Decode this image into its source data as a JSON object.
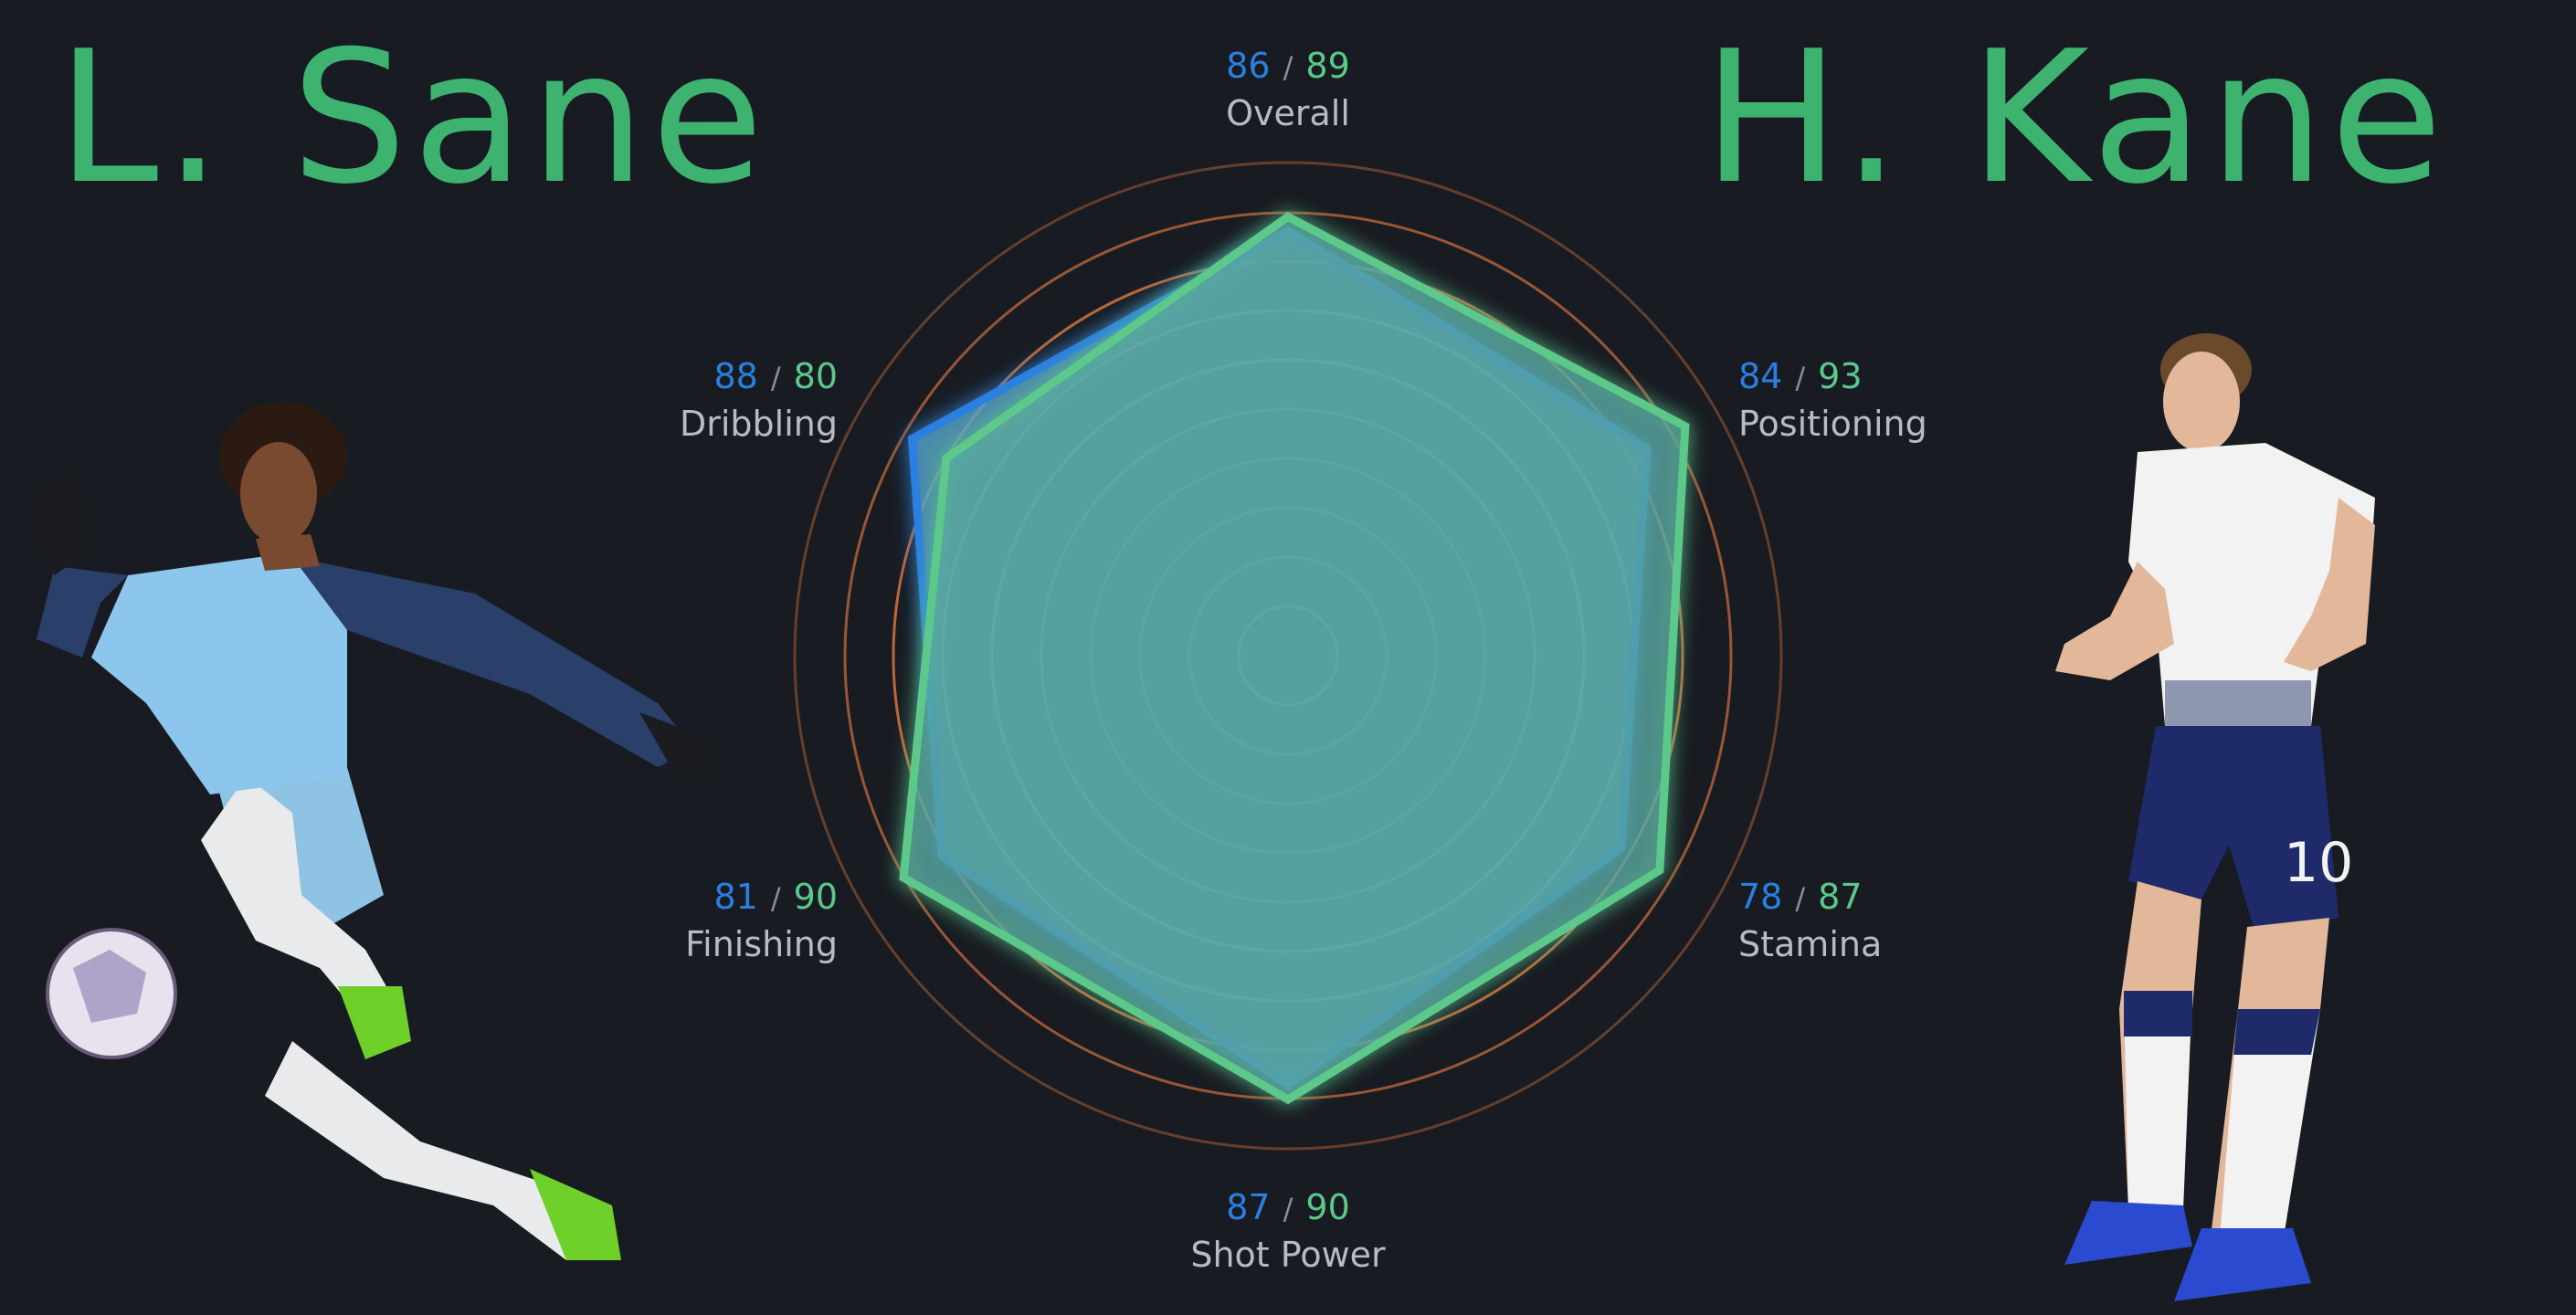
{
  "colors": {
    "background": "#181c22",
    "player1": "#2a7fe0",
    "player1_fill": "#5aa6c6",
    "player2": "#5bc98a",
    "player2_fill": "#5aa6a0",
    "name_color": "#3db36f",
    "ring_orange": "#c46a3a",
    "ring_cream": "#d6cfae",
    "label_gray": "#b7bcc3"
  },
  "players": {
    "p1": {
      "name": "L. Sane",
      "image": "player-photo-man-city-kit"
    },
    "p2": {
      "name": "H. Kane",
      "image": "player-photo-tottenham-kit"
    }
  },
  "chart_data": {
    "type": "radar",
    "axes": [
      "Overall",
      "Positioning",
      "Stamina",
      "Shot Power",
      "Finishing",
      "Dribbling"
    ],
    "series": [
      {
        "name": "L. Sane",
        "values": [
          86,
          84,
          78,
          87,
          81,
          88
        ]
      },
      {
        "name": "H. Kane",
        "values": [
          89,
          93,
          87,
          90,
          90,
          80
        ]
      }
    ],
    "range": [
      0,
      100
    ]
  }
}
